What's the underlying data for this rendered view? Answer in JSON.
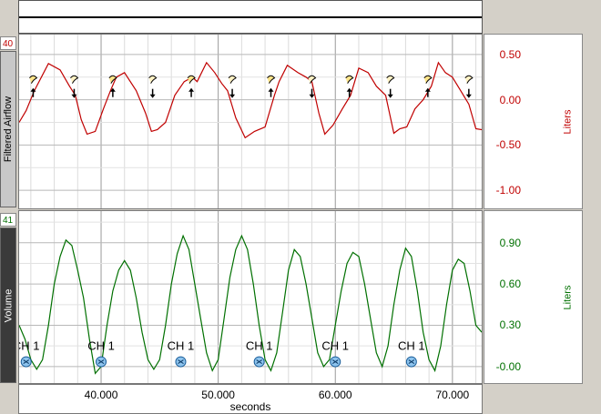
{
  "top_strip": {},
  "channels": [
    {
      "number": "40",
      "name": "Filtered Airflow",
      "unit": "Liters",
      "color": "#c00000",
      "scale_ticks": [
        "0.50",
        "0.00",
        "-0.50",
        "-1.00"
      ],
      "scale_values": [
        0.5,
        0.0,
        -0.5,
        -1.0
      ],
      "ylim": [
        -1.2,
        0.72
      ]
    },
    {
      "number": "41",
      "name": "Volume",
      "unit": "Liters",
      "color": "#007000",
      "scale_ticks": [
        "0.90",
        "0.60",
        "0.30",
        "-0.00"
      ],
      "scale_values": [
        0.9,
        0.6,
        0.3,
        0.0
      ],
      "ylim": [
        -0.12,
        1.13
      ],
      "event_label": "CH 1",
      "event_count": 6
    }
  ],
  "x_axis": {
    "label": "seconds",
    "ticks": [
      "40.000",
      "50.000",
      "60.000",
      "70.000"
    ],
    "tick_values": [
      40,
      50,
      60,
      70
    ],
    "xlim": [
      33.0,
      72.5
    ]
  },
  "chart_data": [
    {
      "type": "line",
      "title": "",
      "ylabel": "Liters",
      "series": [
        {
          "name": "Filtered Airflow",
          "x": [
            33.0,
            33.6,
            34.3,
            35.5,
            36.5,
            37.3,
            37.8,
            38.3,
            38.8,
            39.5,
            40.2,
            40.8,
            41.3,
            42.0,
            43.0,
            43.8,
            44.3,
            44.8,
            45.5,
            46.3,
            47.1,
            47.8,
            48.2,
            49.0,
            49.7,
            50.3,
            50.8,
            51.5,
            52.3,
            53.1,
            54.0,
            54.8,
            55.2,
            55.9,
            56.8,
            57.5,
            58.0,
            58.6,
            59.1,
            59.8,
            60.6,
            61.3,
            62.0,
            62.8,
            63.5,
            64.3,
            65.0,
            65.5,
            66.1,
            66.8,
            67.5,
            68.2,
            68.8,
            69.4,
            70.0,
            70.7,
            71.4,
            72.0,
            72.5
          ],
          "y": [
            -0.25,
            -0.12,
            0.1,
            0.4,
            0.33,
            0.15,
            0.05,
            -0.22,
            -0.38,
            -0.35,
            -0.1,
            0.1,
            0.25,
            0.3,
            0.1,
            -0.15,
            -0.35,
            -0.33,
            -0.25,
            0.05,
            0.2,
            0.25,
            0.2,
            0.41,
            0.3,
            0.18,
            0.1,
            -0.2,
            -0.42,
            -0.35,
            -0.3,
            0.05,
            0.2,
            0.38,
            0.3,
            0.25,
            0.2,
            -0.15,
            -0.38,
            -0.28,
            -0.1,
            0.05,
            0.35,
            0.3,
            0.15,
            0.05,
            -0.37,
            -0.32,
            -0.3,
            -0.1,
            0.0,
            0.15,
            0.41,
            0.3,
            0.25,
            0.1,
            -0.05,
            -0.32,
            -0.33
          ]
        }
      ]
    },
    {
      "type": "line",
      "title": "",
      "ylabel": "Liters",
      "series": [
        {
          "name": "Volume",
          "x": [
            33.0,
            33.5,
            34.0,
            34.5,
            35.0,
            35.5,
            36.0,
            36.5,
            37.0,
            37.5,
            38.0,
            38.5,
            39.0,
            39.5,
            40.0,
            40.5,
            41.0,
            41.5,
            42.0,
            42.5,
            43.0,
            43.5,
            44.0,
            44.5,
            45.0,
            45.5,
            46.0,
            46.5,
            47.0,
            47.5,
            48.0,
            48.5,
            49.0,
            49.5,
            50.0,
            50.5,
            51.0,
            51.5,
            52.0,
            52.5,
            53.0,
            53.5,
            54.0,
            54.5,
            55.0,
            55.5,
            56.0,
            56.5,
            57.0,
            57.5,
            58.0,
            58.5,
            59.0,
            59.5,
            60.0,
            60.5,
            61.0,
            61.5,
            62.0,
            62.5,
            63.0,
            63.5,
            64.0,
            64.5,
            65.0,
            65.5,
            66.0,
            66.5,
            67.0,
            67.5,
            68.0,
            68.5,
            69.0,
            69.5,
            70.0,
            70.5,
            71.0,
            71.5,
            72.0,
            72.5
          ],
          "y": [
            0.3,
            0.2,
            0.05,
            -0.02,
            0.05,
            0.3,
            0.6,
            0.8,
            0.92,
            0.88,
            0.7,
            0.5,
            0.2,
            -0.05,
            0.0,
            0.3,
            0.55,
            0.7,
            0.77,
            0.7,
            0.5,
            0.25,
            0.05,
            -0.02,
            0.05,
            0.3,
            0.6,
            0.82,
            0.95,
            0.85,
            0.6,
            0.35,
            0.1,
            -0.03,
            0.05,
            0.35,
            0.65,
            0.85,
            0.95,
            0.85,
            0.6,
            0.3,
            0.05,
            -0.03,
            0.1,
            0.4,
            0.7,
            0.85,
            0.8,
            0.6,
            0.35,
            0.1,
            0.0,
            0.05,
            0.3,
            0.55,
            0.75,
            0.83,
            0.8,
            0.6,
            0.35,
            0.1,
            0.0,
            0.15,
            0.45,
            0.7,
            0.86,
            0.8,
            0.55,
            0.25,
            0.05,
            -0.03,
            0.15,
            0.45,
            0.7,
            0.78,
            0.75,
            0.55,
            0.3,
            0.25
          ]
        }
      ]
    }
  ],
  "markers": {
    "inhale_x": [
      34.2,
      41.0,
      47.7,
      54.5,
      61.2,
      67.9
    ],
    "exhale_x": [
      37.7,
      44.4,
      51.2,
      58.0,
      64.7,
      71.4
    ],
    "volume_events_x": [
      33.6,
      40.0,
      46.8,
      53.5,
      60.0,
      66.5
    ]
  }
}
